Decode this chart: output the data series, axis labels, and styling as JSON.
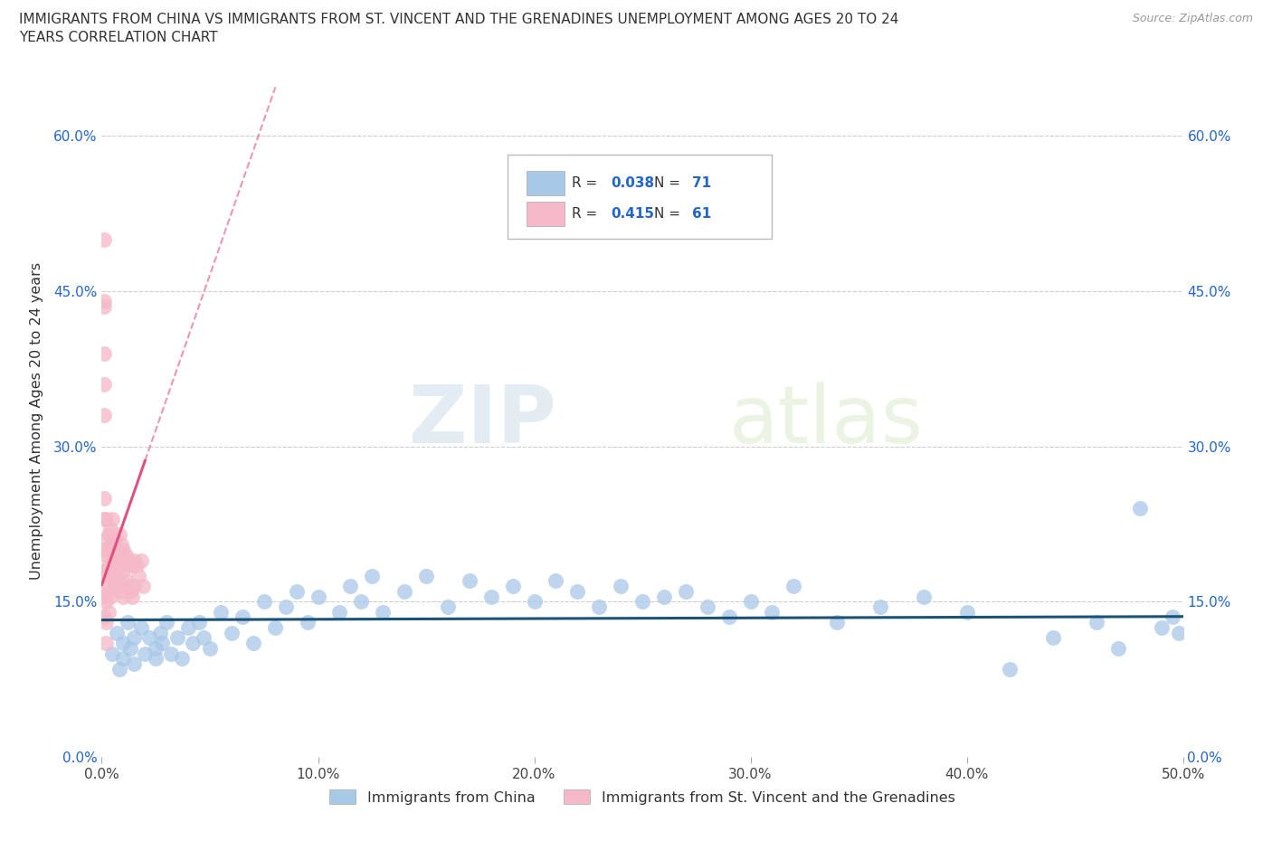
{
  "title_line1": "IMMIGRANTS FROM CHINA VS IMMIGRANTS FROM ST. VINCENT AND THE GRENADINES UNEMPLOYMENT AMONG AGES 20 TO 24",
  "title_line2": "YEARS CORRELATION CHART",
  "source": "Source: ZipAtlas.com",
  "xlabel_china": "Immigrants from China",
  "xlabel_svg": "Immigrants from St. Vincent and the Grenadines",
  "ylabel": "Unemployment Among Ages 20 to 24 years",
  "xlim": [
    0.0,
    0.5
  ],
  "ylim": [
    0.0,
    0.65
  ],
  "xticks": [
    0.0,
    0.1,
    0.2,
    0.3,
    0.4,
    0.5
  ],
  "xticklabels": [
    "0.0%",
    "10.0%",
    "20.0%",
    "30.0%",
    "40.0%",
    "50.0%"
  ],
  "yticks": [
    0.0,
    0.15,
    0.3,
    0.45,
    0.6
  ],
  "yticklabels": [
    "0.0%",
    "15.0%",
    "30.0%",
    "45.0%",
    "60.0%"
  ],
  "china_color": "#a8c8e8",
  "china_line_color": "#1a5276",
  "svg_color": "#f4b8c8",
  "svg_line_color": "#e05080",
  "china_R": 0.038,
  "china_N": 71,
  "svg_R": 0.415,
  "svg_N": 61,
  "watermark_zip": "ZIP",
  "watermark_atlas": "atlas",
  "china_x": [
    0.005,
    0.007,
    0.008,
    0.01,
    0.01,
    0.012,
    0.013,
    0.015,
    0.015,
    0.018,
    0.02,
    0.022,
    0.025,
    0.025,
    0.027,
    0.028,
    0.03,
    0.032,
    0.035,
    0.037,
    0.04,
    0.042,
    0.045,
    0.047,
    0.05,
    0.055,
    0.06,
    0.065,
    0.07,
    0.075,
    0.08,
    0.085,
    0.09,
    0.095,
    0.1,
    0.11,
    0.115,
    0.12,
    0.125,
    0.13,
    0.14,
    0.15,
    0.16,
    0.17,
    0.18,
    0.19,
    0.2,
    0.21,
    0.22,
    0.23,
    0.24,
    0.25,
    0.26,
    0.27,
    0.28,
    0.29,
    0.3,
    0.31,
    0.32,
    0.34,
    0.36,
    0.38,
    0.4,
    0.42,
    0.44,
    0.46,
    0.47,
    0.48,
    0.49,
    0.495,
    0.498
  ],
  "china_y": [
    0.1,
    0.12,
    0.085,
    0.11,
    0.095,
    0.13,
    0.105,
    0.115,
    0.09,
    0.125,
    0.1,
    0.115,
    0.105,
    0.095,
    0.12,
    0.11,
    0.13,
    0.1,
    0.115,
    0.095,
    0.125,
    0.11,
    0.13,
    0.115,
    0.105,
    0.14,
    0.12,
    0.135,
    0.11,
    0.15,
    0.125,
    0.145,
    0.16,
    0.13,
    0.155,
    0.14,
    0.165,
    0.15,
    0.175,
    0.14,
    0.16,
    0.175,
    0.145,
    0.17,
    0.155,
    0.165,
    0.15,
    0.17,
    0.16,
    0.145,
    0.165,
    0.15,
    0.155,
    0.16,
    0.145,
    0.135,
    0.15,
    0.14,
    0.165,
    0.13,
    0.145,
    0.155,
    0.14,
    0.085,
    0.115,
    0.13,
    0.105,
    0.24,
    0.125,
    0.135,
    0.12
  ],
  "svg_x": [
    0.001,
    0.001,
    0.001,
    0.001,
    0.001,
    0.001,
    0.001,
    0.001,
    0.001,
    0.001,
    0.001,
    0.001,
    0.002,
    0.002,
    0.002,
    0.002,
    0.002,
    0.002,
    0.002,
    0.002,
    0.003,
    0.003,
    0.003,
    0.003,
    0.003,
    0.004,
    0.004,
    0.004,
    0.004,
    0.005,
    0.005,
    0.005,
    0.006,
    0.006,
    0.006,
    0.007,
    0.007,
    0.007,
    0.008,
    0.008,
    0.008,
    0.009,
    0.009,
    0.009,
    0.01,
    0.01,
    0.01,
    0.011,
    0.011,
    0.012,
    0.012,
    0.013,
    0.013,
    0.014,
    0.014,
    0.015,
    0.015,
    0.016,
    0.017,
    0.018,
    0.019
  ],
  "svg_y": [
    0.5,
    0.44,
    0.435,
    0.39,
    0.36,
    0.33,
    0.25,
    0.23,
    0.2,
    0.175,
    0.155,
    0.135,
    0.23,
    0.21,
    0.195,
    0.18,
    0.165,
    0.15,
    0.13,
    0.11,
    0.215,
    0.2,
    0.185,
    0.16,
    0.14,
    0.22,
    0.2,
    0.175,
    0.155,
    0.23,
    0.205,
    0.185,
    0.21,
    0.19,
    0.175,
    0.2,
    0.185,
    0.165,
    0.215,
    0.195,
    0.17,
    0.205,
    0.185,
    0.16,
    0.2,
    0.18,
    0.155,
    0.195,
    0.17,
    0.19,
    0.165,
    0.185,
    0.16,
    0.185,
    0.155,
    0.19,
    0.165,
    0.185,
    0.175,
    0.19,
    0.165
  ]
}
